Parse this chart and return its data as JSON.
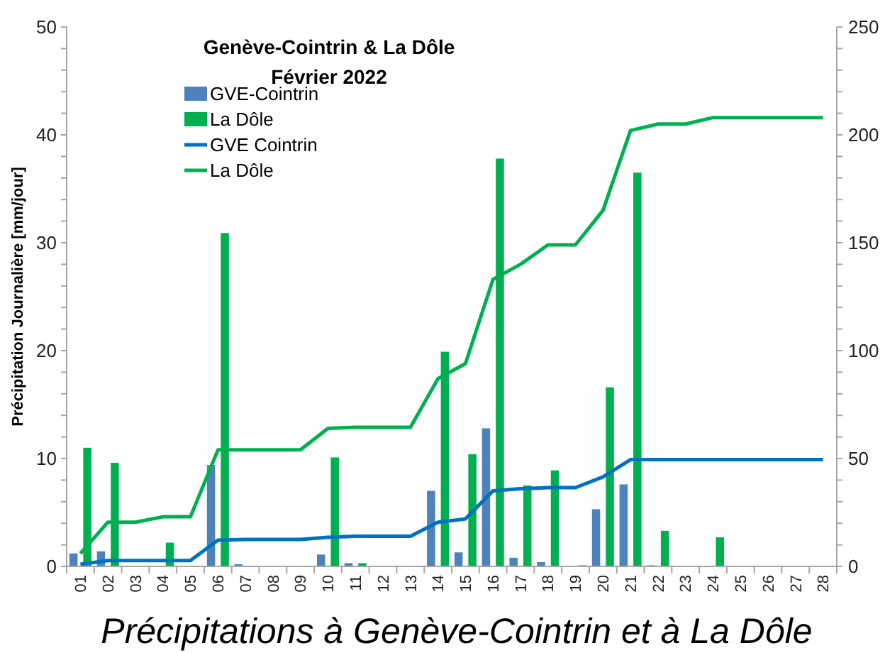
{
  "chart_data": {
    "type": "bar",
    "title": "Genève-Cointrin & La Dôle",
    "subtitle": "Février 2022",
    "ylabel": "Précipitation Journalière [mm/jour]",
    "annotations": [
      "Précipitations à Genève-Cointrin et à La Dôle"
    ],
    "categories": [
      "01",
      "02",
      "03",
      "04",
      "05",
      "06",
      "07",
      "08",
      "09",
      "10",
      "11",
      "12",
      "13",
      "14",
      "15",
      "16",
      "17",
      "18",
      "19",
      "20",
      "21",
      "22",
      "23",
      "24",
      "25",
      "26",
      "27",
      "28"
    ],
    "series": [
      {
        "name": "GVE-Cointrin",
        "color": "#4f81bd",
        "values": [
          1.2,
          1.4,
          0,
          0,
          0,
          9.4,
          0.2,
          0,
          0,
          1.1,
          0.3,
          0,
          0,
          7.0,
          1.3,
          12.8,
          0.8,
          0.4,
          0,
          5.3,
          7.6,
          0.1,
          0,
          0,
          0,
          0,
          0,
          0
        ]
      },
      {
        "name": "La Dôle",
        "color": "#00b050",
        "values": [
          11.0,
          9.6,
          0,
          2.2,
          0,
          30.9,
          0,
          0,
          0,
          10.1,
          0.3,
          0,
          0,
          19.9,
          10.4,
          37.8,
          7.5,
          8.9,
          0.1,
          16.6,
          36.5,
          3.3,
          0,
          2.7,
          0,
          0,
          0,
          0
        ]
      },
      {
        "name": "GVE Cointrin",
        "type": "line",
        "axis": "y2",
        "color": "#0070c0",
        "values": [
          1,
          2.7,
          2.7,
          2.7,
          2.7,
          12.2,
          12.5,
          12.5,
          12.5,
          13.5,
          14,
          14,
          14,
          20.5,
          22,
          35,
          36,
          36.5,
          36.5,
          41.5,
          49.5,
          49.5,
          49.5,
          49.5,
          49.5,
          49.5,
          49.5,
          49.5
        ]
      },
      {
        "name": "La Dôle",
        "type": "line",
        "axis": "y2",
        "color": "#00b050",
        "values": [
          6,
          20.5,
          20.5,
          23,
          23,
          54,
          54,
          54,
          54,
          64,
          64.5,
          64.5,
          64.5,
          87,
          94,
          133,
          140,
          149,
          149,
          165,
          202,
          205,
          205,
          208,
          208,
          208,
          208,
          208
        ]
      }
    ],
    "ylim": [
      0,
      50
    ],
    "yticks": [
      0,
      {
        "value": 2,
        "label": null
      },
      {
        "value": 4,
        "label": null
      },
      {
        "value": 6,
        "label": null
      },
      {
        "value": 8,
        "label": null
      },
      10,
      {
        "value": 12,
        "label": null
      },
      {
        "value": 14,
        "label": null
      },
      {
        "value": 16,
        "label": null
      },
      {
        "value": 18,
        "label": null
      },
      20,
      {
        "value": 22,
        "label": null
      },
      {
        "value": 24,
        "label": null
      },
      {
        "value": 26,
        "label": null
      },
      {
        "value": 28,
        "label": null
      },
      30,
      {
        "value": 32,
        "label": null
      },
      {
        "value": 34,
        "label": null
      },
      {
        "value": 36,
        "label": null
      },
      {
        "value": 38,
        "label": null
      },
      40,
      {
        "value": 42,
        "label": null
      },
      {
        "value": 44,
        "label": null
      },
      {
        "value": 46,
        "label": null
      },
      {
        "value": 48,
        "label": null
      },
      50
    ],
    "y2lim": [
      0,
      250
    ],
    "y2ticks": [
      0,
      {
        "value": 10,
        "label": null
      },
      {
        "value": 20,
        "label": null
      },
      {
        "value": 30,
        "label": null
      },
      {
        "value": 40,
        "label": null
      },
      50,
      {
        "value": 60,
        "label": null
      },
      {
        "value": 70,
        "label": null
      },
      {
        "value": 80,
        "label": null
      },
      {
        "value": 90,
        "label": null
      },
      100,
      {
        "value": 110,
        "label": null
      },
      {
        "value": 120,
        "label": null
      },
      {
        "value": 130,
        "label": null
      },
      {
        "value": 140,
        "label": null
      },
      150,
      {
        "value": 160,
        "label": null
      },
      {
        "value": 170,
        "label": null
      },
      {
        "value": 180,
        "label": null
      },
      {
        "value": 190,
        "label": null
      },
      200,
      {
        "value": 210,
        "label": null
      },
      {
        "value": 220,
        "label": null
      },
      {
        "value": 230,
        "label": null
      },
      {
        "value": 240,
        "label": null
      },
      250
    ],
    "legend": "top left",
    "grid": false,
    "line_style": "solid",
    "marker": "none"
  }
}
